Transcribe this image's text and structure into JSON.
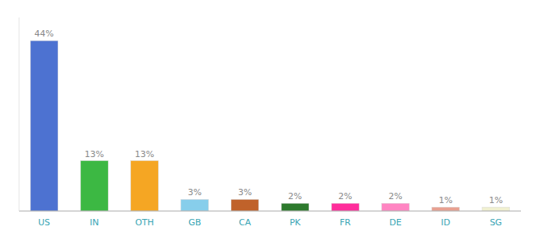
{
  "chart_data": {
    "type": "bar",
    "categories": [
      "US",
      "IN",
      "OTH",
      "GB",
      "CA",
      "PK",
      "FR",
      "DE",
      "ID",
      "SG"
    ],
    "values": [
      44,
      13,
      13,
      3,
      3,
      2,
      2,
      2,
      1,
      1
    ],
    "value_labels": [
      "44%",
      "13%",
      "13%",
      "3%",
      "3%",
      "2%",
      "2%",
      "2%",
      "1%",
      "1%"
    ],
    "colors": [
      "#4d72d1",
      "#3cb843",
      "#f5a623",
      "#87ceeb",
      "#c0622a",
      "#2d7a2d",
      "#ff2d9b",
      "#ff85c2",
      "#e8a090",
      "#f0f0d0"
    ],
    "ylim": [
      0,
      50
    ],
    "data_labels": true,
    "tick_labels": "x",
    "grid": false
  }
}
